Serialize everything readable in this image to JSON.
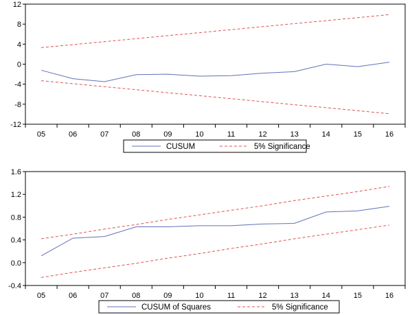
{
  "chart_data": [
    {
      "type": "line",
      "categories": [
        "05",
        "06",
        "07",
        "08",
        "09",
        "10",
        "11",
        "12",
        "13",
        "14",
        "15",
        "16"
      ],
      "ylim": [
        -12,
        12
      ],
      "yticks": [
        -12,
        -8,
        -4,
        0,
        4,
        8,
        12
      ],
      "ytick_labels": [
        "-12",
        "-8",
        "-4",
        "0",
        "4",
        "8",
        "12"
      ],
      "grid": false,
      "legend_position": "bottom-center",
      "series": [
        {
          "name": "CUSUM",
          "style": "solid",
          "color": "#6070b8",
          "values": [
            -1.2,
            -2.9,
            -3.5,
            -2.1,
            -2.0,
            -2.4,
            -2.3,
            -1.8,
            -1.5,
            0.0,
            -0.5,
            0.4
          ]
        },
        {
          "name": "5% Significance",
          "style": "dashed",
          "color": "#e05050",
          "values": [
            3.3,
            3.9,
            4.5,
            5.1,
            5.7,
            6.3,
            6.9,
            7.5,
            8.1,
            8.7,
            9.3,
            9.9
          ]
        },
        {
          "name": "",
          "style": "dashed",
          "color": "#e05050",
          "values": [
            -3.3,
            -3.9,
            -4.5,
            -5.1,
            -5.7,
            -6.3,
            -6.9,
            -7.5,
            -8.1,
            -8.7,
            -9.3,
            -9.9
          ]
        }
      ]
    },
    {
      "type": "line",
      "categories": [
        "05",
        "06",
        "07",
        "08",
        "09",
        "10",
        "11",
        "12",
        "13",
        "14",
        "15",
        "16"
      ],
      "ylim": [
        -0.4,
        1.6
      ],
      "yticks": [
        -0.4,
        0.0,
        0.4,
        0.8,
        1.2,
        1.6
      ],
      "ytick_labels": [
        "-0.4",
        "0.0",
        "0.4",
        "0.8",
        "1.2",
        "1.6"
      ],
      "grid": false,
      "legend_position": "bottom-center",
      "series": [
        {
          "name": "CUSUM of Squares",
          "style": "solid",
          "color": "#6070b8",
          "values": [
            0.12,
            0.43,
            0.46,
            0.63,
            0.63,
            0.65,
            0.65,
            0.68,
            0.69,
            0.89,
            0.91,
            0.99
          ]
        },
        {
          "name": "5% Significance",
          "style": "dashed",
          "color": "#e05050",
          "values": [
            0.42,
            0.5,
            0.59,
            0.67,
            0.76,
            0.84,
            0.92,
            1.0,
            1.09,
            1.17,
            1.25,
            1.34
          ]
        },
        {
          "name": "",
          "style": "dashed",
          "color": "#e05050",
          "values": [
            -0.26,
            -0.17,
            -0.09,
            -0.01,
            0.08,
            0.16,
            0.25,
            0.33,
            0.42,
            0.5,
            0.58,
            0.66
          ]
        }
      ]
    }
  ]
}
